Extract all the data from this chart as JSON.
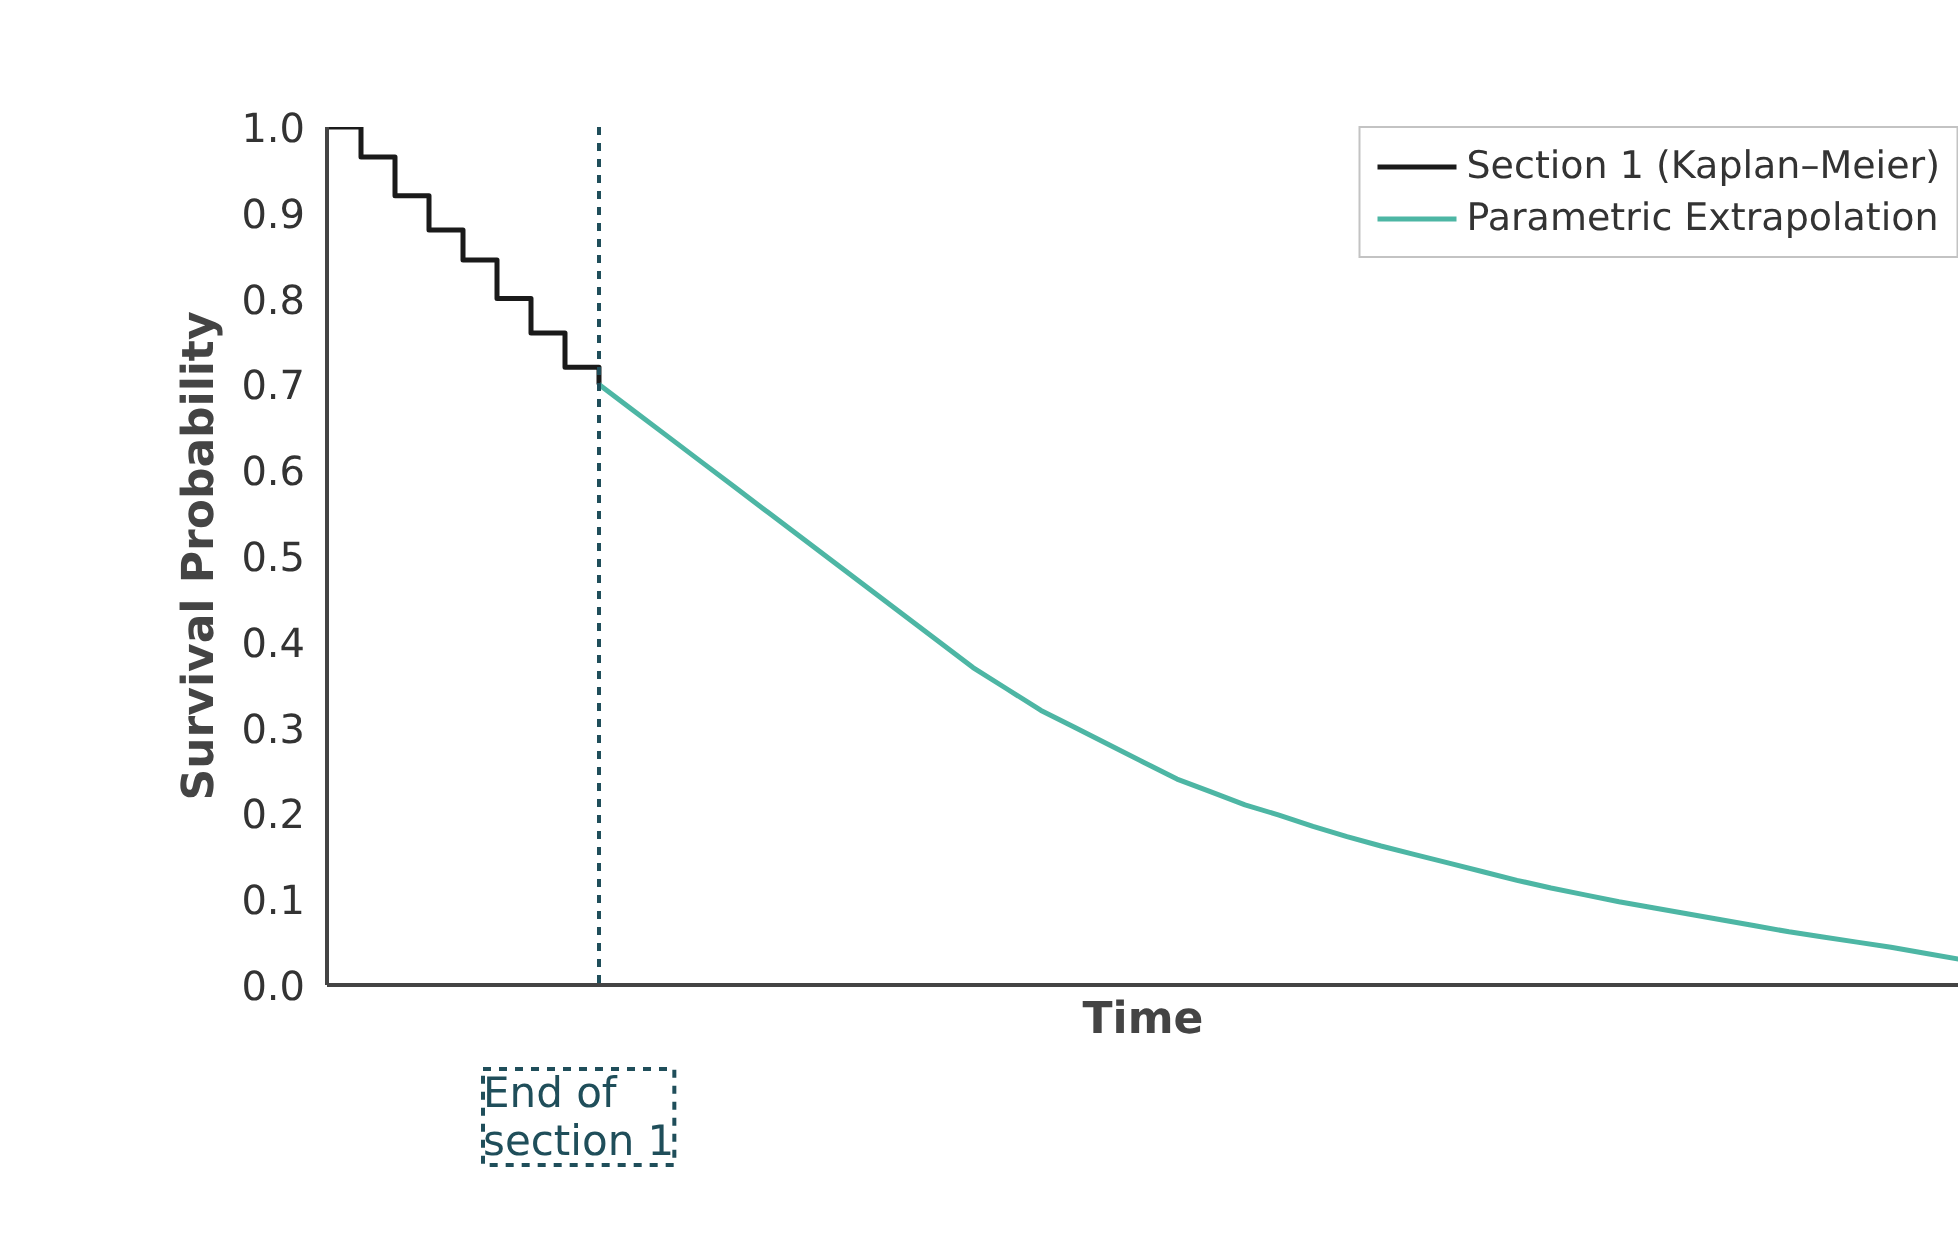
{
  "chart_data": {
    "type": "step",
    "xlabel": "Time",
    "ylabel": "Survival Probability",
    "ylim": [
      0,
      1.0
    ],
    "categories": [
      null,
      null,
      null,
      null,
      null,
      null,
      null,
      null,
      null,
      null,
      null,
      null,
      null,
      null,
      null,
      null,
      null,
      null,
      null,
      null,
      null,
      null,
      null,
      null,
      null,
      null,
      null,
      null,
      null,
      null,
      null,
      null,
      null,
      null,
      null,
      null,
      null,
      null,
      null,
      null,
      null,
      null,
      null,
      null,
      null,
      null,
      null,
      null,
      null
    ],
    "yticks": [
      {
        "value": 0,
        "label": "0.0"
      },
      0.1,
      0.2,
      0.3,
      0.4,
      0.5,
      0.6,
      0.7,
      0.8,
      0.9,
      {
        "value": 1.0,
        "label": "1.0"
      }
    ],
    "grid": false,
    "legend": "top right",
    "series": [
      {
        "name": "Section 1 (Kaplan–Meier)",
        "color": "#1a1a1a",
        "values": [
          1.0,
          0.965,
          0.92,
          0.88,
          0.845,
          0.8,
          0.76,
          0.72,
          0.7,
          null,
          null,
          null,
          null,
          null,
          null,
          null,
          null,
          null,
          null,
          null,
          null,
          null,
          null,
          null,
          null,
          null,
          null,
          null,
          null,
          null,
          null,
          null,
          null,
          null,
          null,
          null,
          null,
          null,
          null,
          null,
          null,
          null,
          null,
          null,
          null,
          null,
          null,
          null,
          null
        ]
      },
      {
        "name": "Parametric Extrapolation",
        "type": "line",
        "color": "#4db6a4",
        "values": [
          null,
          null,
          null,
          null,
          null,
          null,
          null,
          null,
          0.7,
          0.67,
          0.64,
          0.61,
          0.58,
          0.55,
          0.52,
          0.49,
          0.46,
          0.43,
          0.4,
          0.37,
          0.345,
          0.32,
          0.3,
          0.28,
          0.26,
          0.24,
          0.225,
          0.21,
          0.198,
          0.185,
          0.173,
          0.162,
          0.152,
          0.142,
          0.132,
          0.122,
          0.113,
          0.105,
          0.097,
          0.09,
          0.083,
          0.076,
          0.069,
          0.062,
          0.056,
          0.05,
          0.044,
          0.037,
          0.03
        ]
      }
    ],
    "annotations": [
      "End of\nsection 1"
    ]
  }
}
